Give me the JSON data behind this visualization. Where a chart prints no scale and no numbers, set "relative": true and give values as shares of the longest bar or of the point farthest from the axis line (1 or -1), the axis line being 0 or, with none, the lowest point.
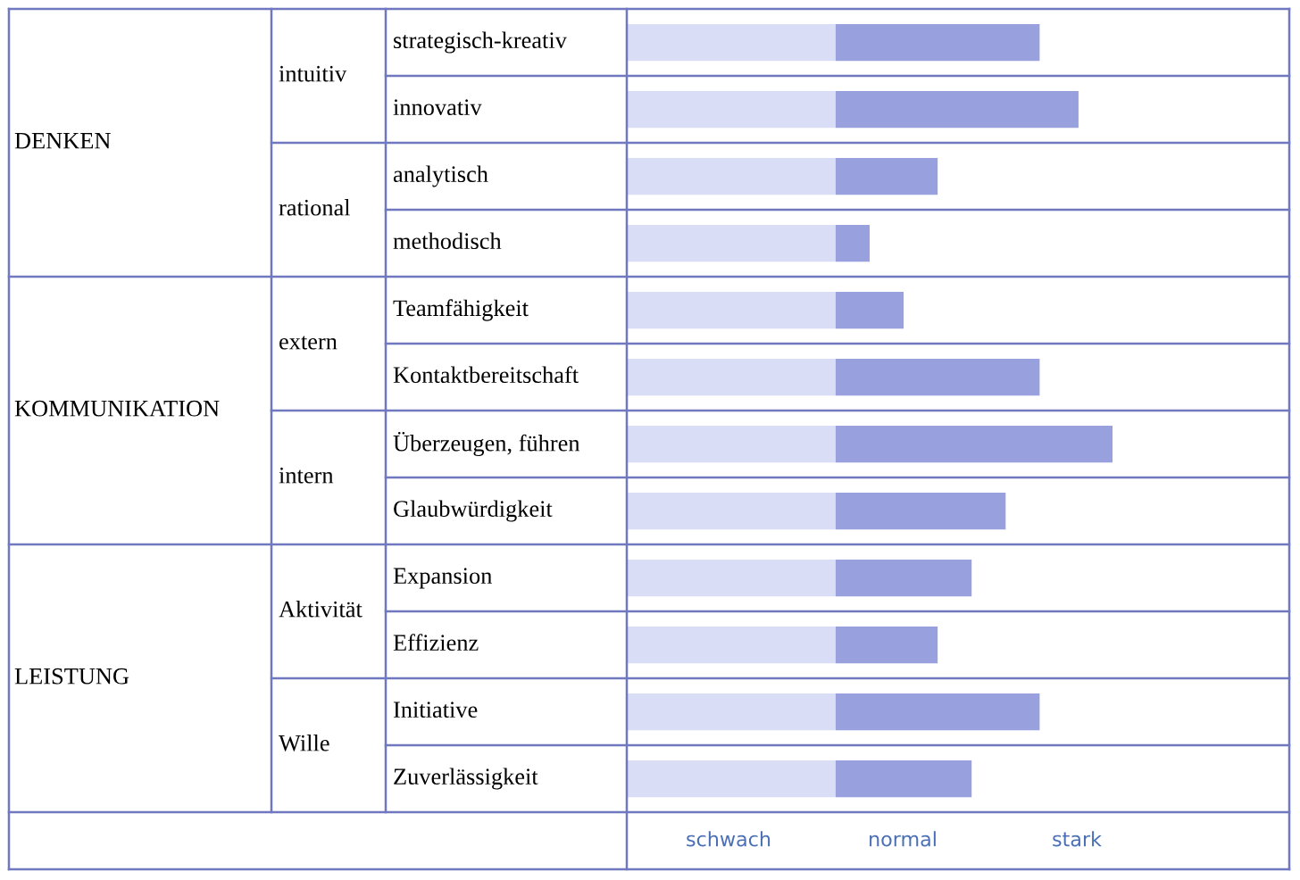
{
  "chart_data": {
    "type": "bar",
    "orientation": "horizontal",
    "stacked": true,
    "relative": true,
    "categories": [
      "strategisch-kreativ",
      "innovativ",
      "analytisch",
      "methodisch",
      "Teamfähigkeit",
      "Kontaktbereitschaft",
      "Überzeugen, führen",
      "Glaubwürdigkeit",
      "Expansion",
      "Effizienz",
      "Initiative",
      "Zuverlässigkeit"
    ],
    "series": [
      {
        "color": "#d9ddf6",
        "values": [
          0.43,
          0.43,
          0.43,
          0.43,
          0.43,
          0.43,
          0.43,
          0.43,
          0.43,
          0.43,
          0.43,
          0.43
        ]
      },
      {
        "color": "#98a0de",
        "values": [
          0.42,
          0.5,
          0.21,
          0.07,
          0.14,
          0.42,
          0.57,
          0.35,
          0.28,
          0.21,
          0.42,
          0.28
        ]
      }
    ],
    "annotations": [
      "DENKEN",
      "KOMMUNIKATION",
      "LEISTUNG",
      "intuitiv",
      "rational",
      "extern",
      "intern",
      "Aktivität",
      "Wille",
      "schwach",
      "normal",
      "stark"
    ],
    "legend": false
  }
}
